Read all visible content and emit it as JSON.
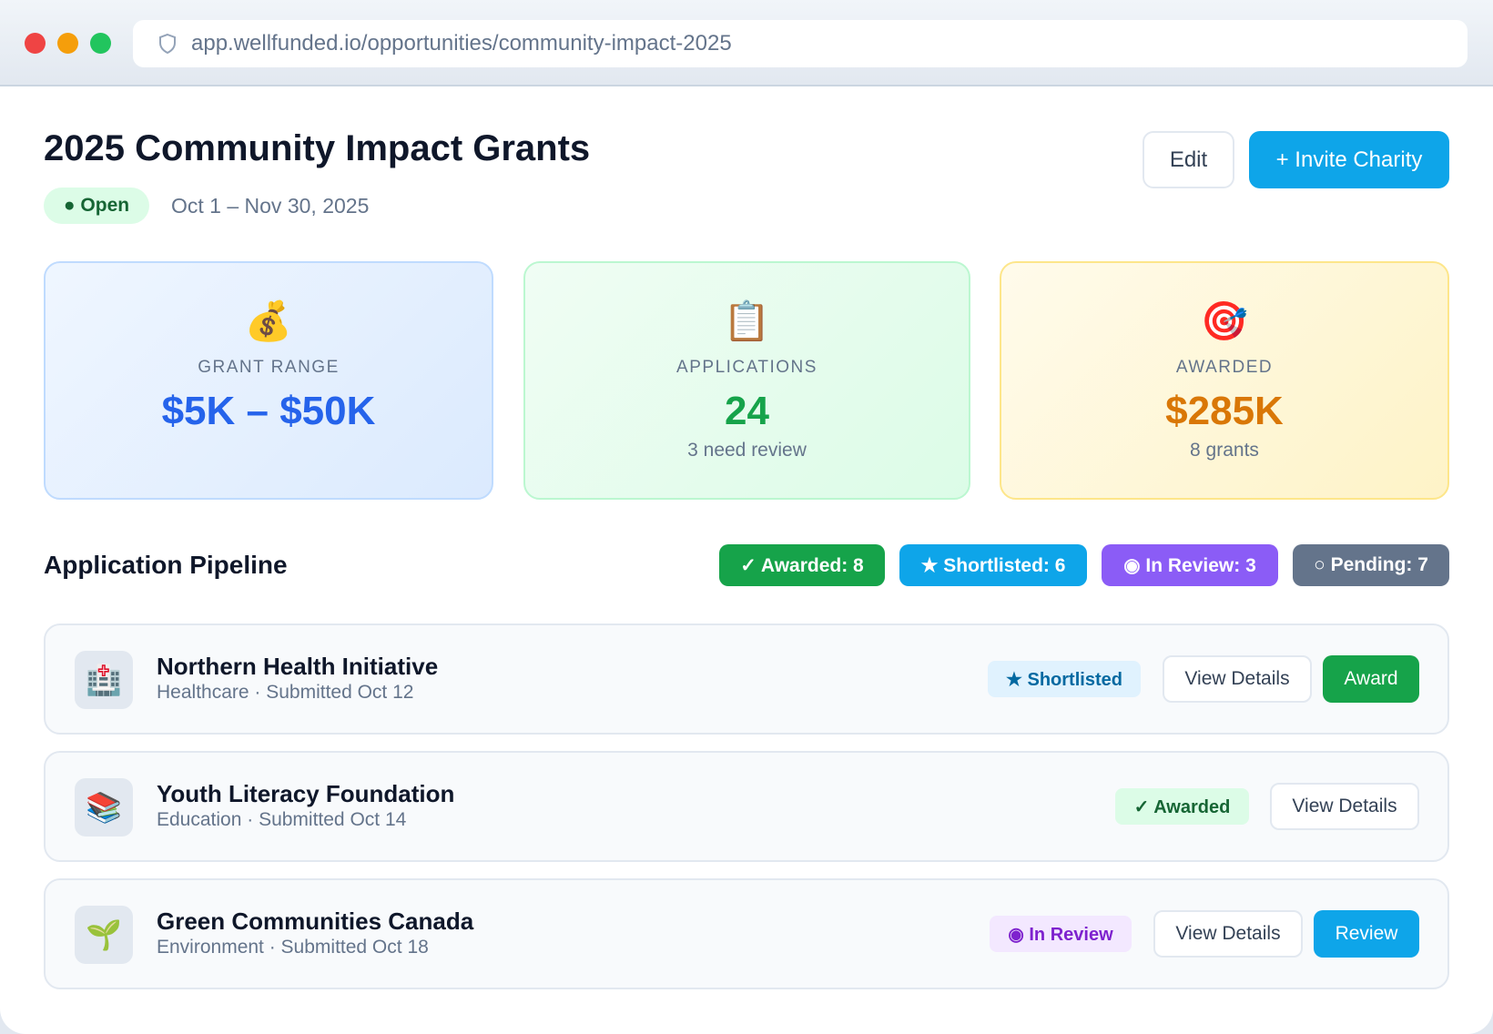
{
  "browser": {
    "url": "app.wellfunded.io/opportunities/community-impact-2025"
  },
  "header": {
    "title": "2025 Community Impact Grants",
    "status": "● Open",
    "dates": "Oct 1 – Nov 30, 2025",
    "edit_label": "Edit",
    "invite_label": "+ Invite Charity"
  },
  "stats": [
    {
      "icon": "💰",
      "label": "GRANT RANGE",
      "value": "$5K – $50K",
      "sub": "",
      "color": "#2563eb"
    },
    {
      "icon": "📋",
      "label": "APPLICATIONS",
      "value": "24",
      "sub": "3 need review",
      "color": "#16a34a"
    },
    {
      "icon": "🎯",
      "label": "AWARDED",
      "value": "$285K",
      "sub": "8 grants",
      "color": "#d97706"
    }
  ],
  "pipeline": {
    "title": "Application Pipeline",
    "pills": [
      {
        "label": "✓ Awarded: 8",
        "color": "#16a34a"
      },
      {
        "label": "★ Shortlisted: 6",
        "color": "#0ea5e9"
      },
      {
        "label": "◉ In Review: 3",
        "color": "#8b5cf6"
      },
      {
        "label": "○ Pending: 7",
        "color": "#64748b"
      }
    ]
  },
  "applications": [
    {
      "icon": "🏥",
      "name": "Northern Health Initiative",
      "meta": "Healthcare · Submitted Oct 12",
      "status": "★ Shortlisted",
      "view": "View Details",
      "action": "Award"
    },
    {
      "icon": "📚",
      "name": "Youth Literacy Foundation",
      "meta": "Education · Submitted Oct 14",
      "status": "✓ Awarded",
      "view": "View Details"
    },
    {
      "icon": "🌱",
      "name": "Green Communities Canada",
      "meta": "Environment · Submitted Oct 18",
      "status": "◉ In Review",
      "view": "View Details",
      "action": "Review"
    }
  ]
}
